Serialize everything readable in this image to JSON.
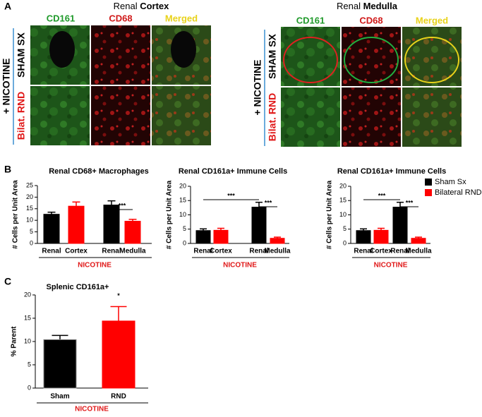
{
  "panel_labels": [
    "A",
    "B",
    "C"
  ],
  "panel_a": {
    "group_label": "+ NICOTINE",
    "rows": [
      "SHAM SX",
      "Bilat. RND"
    ],
    "columns": [
      "CD161",
      "CD68",
      "Merged"
    ],
    "cortex": {
      "title_prefix": "Renal ",
      "title_bold": "Cortex"
    },
    "medulla": {
      "title_prefix": "Renal ",
      "title_bold": "Medulla"
    }
  },
  "chart_data": [
    {
      "type": "bar",
      "title": "Renal CD68+ Macrophages",
      "y_label": "# Cells per Unit Area",
      "categories": [
        "Renal",
        "Cortex",
        "Renal",
        "Medulla"
      ],
      "values": [
        12.6,
        16.1,
        16.6,
        9.6
      ],
      "errors": [
        0.9,
        1.8,
        1.8,
        0.8
      ],
      "colors": [
        "#000000",
        "#ff0000",
        "#000000",
        "#ff0000"
      ],
      "group_label": "NICOTINE",
      "annotations": [
        {
          "text": "***",
          "between": [
            2,
            3
          ]
        }
      ],
      "ylim": [
        0,
        25
      ],
      "yticks": [
        0,
        5,
        10,
        15,
        20,
        25
      ]
    },
    {
      "type": "bar",
      "title": "Renal CD161a+ Immune  Cells",
      "y_label": "# Cells per Unit Area",
      "categories": [
        "Renal",
        "Cortex",
        "Renal",
        "Medulla"
      ],
      "values": [
        4.5,
        4.6,
        12.7,
        1.8
      ],
      "errors": [
        0.6,
        0.7,
        1.7,
        0.4
      ],
      "colors": [
        "#000000",
        "#ff0000",
        "#000000",
        "#ff0000"
      ],
      "group_label": "NICOTINE",
      "annotations": [
        {
          "text": "***",
          "between": [
            0,
            2
          ]
        },
        {
          "text": "***",
          "between": [
            2,
            3
          ]
        }
      ],
      "ylim": [
        0,
        20
      ],
      "yticks": [
        0,
        5,
        10,
        15,
        20
      ]
    },
    {
      "type": "bar",
      "title": "Renal CD161a+ Immune  Cells",
      "y_label": "# Cells per Unit Area",
      "categories": [
        "Renal",
        "Cortex",
        "Renal",
        "Medulla"
      ],
      "values": [
        4.5,
        4.6,
        12.7,
        1.8
      ],
      "errors": [
        0.6,
        0.7,
        1.7,
        0.4
      ],
      "colors": [
        "#000000",
        "#ff0000",
        "#000000",
        "#ff0000"
      ],
      "group_label": "NICOTINE",
      "annotations": [
        {
          "text": "***",
          "between": [
            0,
            2
          ]
        },
        {
          "text": "***",
          "between": [
            2,
            3
          ]
        }
      ],
      "legend": [
        {
          "name": "Sham Sx",
          "color": "#000000"
        },
        {
          "name": "Bilateral RND",
          "color": "#ff0000"
        }
      ],
      "ylim": [
        0,
        20
      ],
      "yticks": [
        0,
        5,
        10,
        15,
        20
      ]
    },
    {
      "type": "bar",
      "title": "Splenic CD161a+",
      "y_label": "% Parent",
      "categories": [
        "Sham",
        "RND"
      ],
      "values": [
        10.4,
        14.4
      ],
      "errors": [
        0.9,
        3.1
      ],
      "colors": [
        "#000000",
        "#ff0000"
      ],
      "group_label": "NICOTINE",
      "annotations": [
        {
          "text": "*",
          "between": [
            1,
            1
          ]
        }
      ],
      "ylim": [
        0,
        20
      ],
      "yticks": [
        0,
        5,
        10,
        15,
        20
      ]
    }
  ]
}
